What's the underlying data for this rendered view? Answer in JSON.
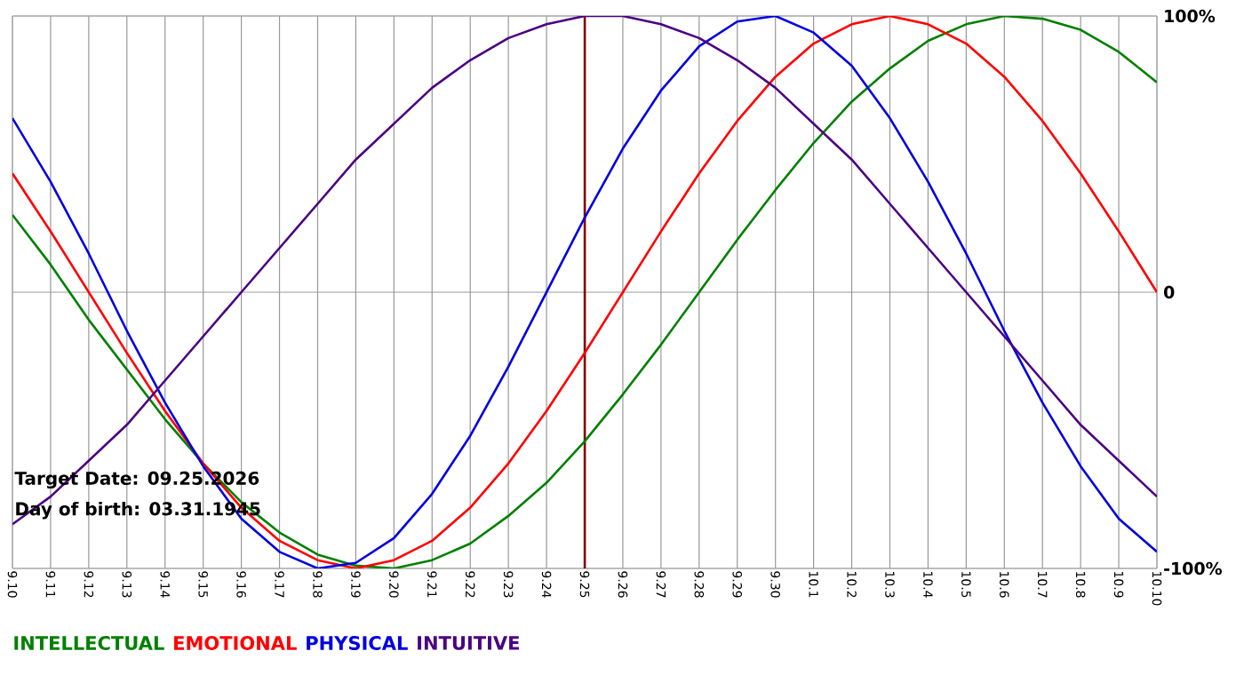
{
  "chart_data": {
    "type": "line",
    "categories": [
      "9.10",
      "9.11",
      "9.12",
      "9.13",
      "9.14",
      "9.15",
      "9.16",
      "9.17",
      "9.18",
      "9.19",
      "9.20",
      "9.21",
      "9.22",
      "9.23",
      "9.24",
      "9.25",
      "9.26",
      "9.27",
      "9.28",
      "9.29",
      "9.30",
      "10.1",
      "10.2",
      "10.3",
      "10.4",
      "10.5",
      "10.6",
      "10.7",
      "10.8",
      "10.9",
      "10.10"
    ],
    "series": [
      {
        "name": "INTELLECTUAL",
        "color": "#008000",
        "values": [
          28,
          10,
          -10,
          -28,
          -46,
          -62,
          -76,
          -87,
          -95,
          -99,
          -100,
          -97,
          -91,
          -81,
          -69,
          -54,
          -37,
          -19,
          0,
          19,
          37,
          54,
          69,
          81,
          91,
          97,
          100,
          99,
          95,
          87,
          76
        ]
      },
      {
        "name": "EMOTIONAL",
        "color": "#ff0000",
        "values": [
          43,
          22,
          0,
          -22,
          -43,
          -62,
          -78,
          -90,
          -97,
          -100,
          -97,
          -90,
          -78,
          -62,
          -43,
          -22,
          0,
          22,
          43,
          62,
          78,
          90,
          97,
          100,
          97,
          90,
          78,
          62,
          43,
          22,
          0
        ]
      },
      {
        "name": "PHYSICAL",
        "color": "#0000e0",
        "values": [
          63,
          40,
          14,
          -14,
          -40,
          -63,
          -82,
          -94,
          -100,
          -98,
          -89,
          -73,
          -52,
          -27,
          0,
          27,
          52,
          73,
          89,
          98,
          100,
          94,
          82,
          63,
          40,
          14,
          -14,
          -40,
          -63,
          -82,
          -94
        ]
      },
      {
        "name": "INTUITIVE",
        "color": "#4b0082",
        "values": [
          -84,
          -74,
          -61,
          -48,
          -32,
          -16,
          0,
          16,
          32,
          48,
          61,
          74,
          84,
          92,
          97,
          100,
          100,
          97,
          92,
          84,
          74,
          61,
          48,
          32,
          16,
          0,
          -16,
          -32,
          -48,
          -61,
          -74
        ]
      }
    ],
    "ylim": [
      -100,
      100
    ],
    "yticks": [
      {
        "value": 100,
        "label": "100%"
      },
      0,
      {
        "value": -100,
        "label": "-100%"
      }
    ],
    "grid": true,
    "legend": "bottom",
    "marker": "none",
    "line_style": "solid",
    "ref_lines": [
      {
        "axis": "x",
        "value": "9.25",
        "color": "#800000"
      }
    ],
    "annotations": [
      "Target Date: 09.25.2026",
      "Day of birth: 03.31.1945"
    ]
  }
}
